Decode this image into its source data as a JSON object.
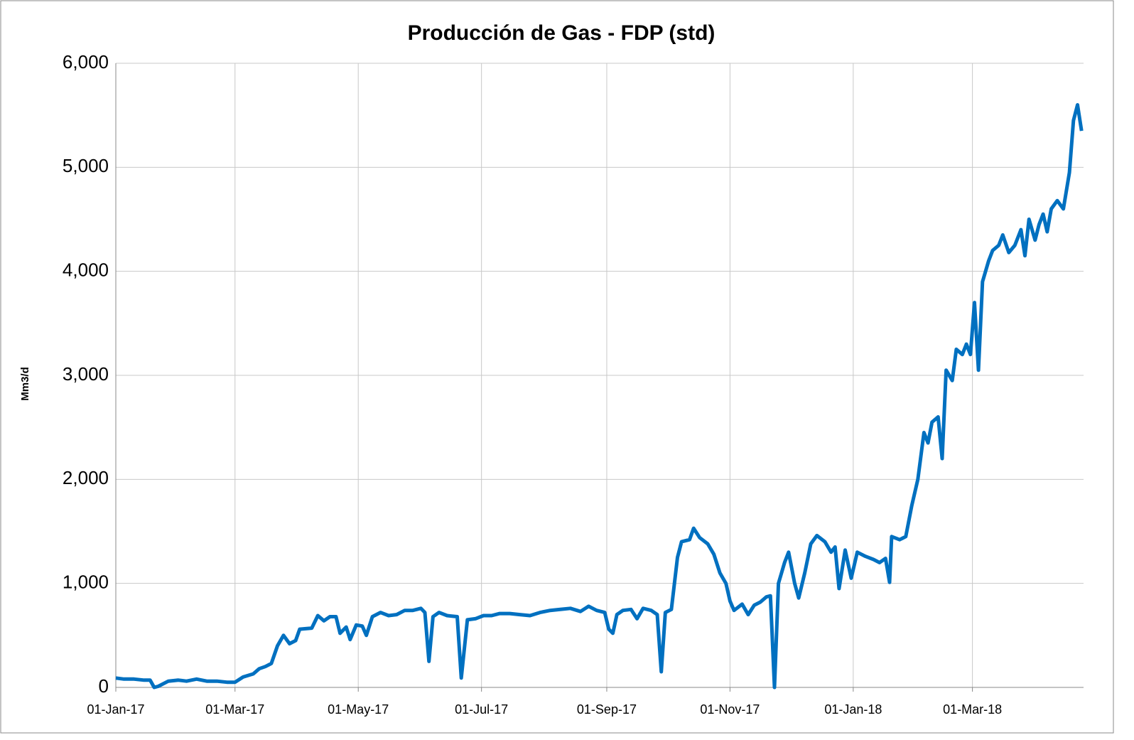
{
  "chart_data": {
    "type": "line",
    "title": "Producción de Gas - FDP (std)",
    "y_label": "Mm3/d",
    "x": [
      "2017-01-01",
      "2017-01-05",
      "2017-01-10",
      "2017-01-15",
      "2017-01-18",
      "2017-01-20",
      "2017-01-22",
      "2017-01-27",
      "2017-02-01",
      "2017-02-05",
      "2017-02-10",
      "2017-02-15",
      "2017-02-20",
      "2017-02-25",
      "2017-03-01",
      "2017-03-05",
      "2017-03-10",
      "2017-03-13",
      "2017-03-16",
      "2017-03-19",
      "2017-03-22",
      "2017-03-25",
      "2017-03-28",
      "2017-03-31",
      "2017-04-02",
      "2017-04-08",
      "2017-04-11",
      "2017-04-14",
      "2017-04-17",
      "2017-04-20",
      "2017-04-22",
      "2017-04-25",
      "2017-04-27",
      "2017-04-30",
      "2017-05-03",
      "2017-05-05",
      "2017-05-08",
      "2017-05-12",
      "2017-05-16",
      "2017-05-20",
      "2017-05-24",
      "2017-05-28",
      "2017-06-01",
      "2017-06-03",
      "2017-06-05",
      "2017-06-07",
      "2017-06-10",
      "2017-06-14",
      "2017-06-19",
      "2017-06-21",
      "2017-06-24",
      "2017-06-28",
      "2017-07-02",
      "2017-07-06",
      "2017-07-10",
      "2017-07-15",
      "2017-07-20",
      "2017-07-25",
      "2017-07-30",
      "2017-08-04",
      "2017-08-09",
      "2017-08-14",
      "2017-08-19",
      "2017-08-23",
      "2017-08-27",
      "2017-08-31",
      "2017-09-02",
      "2017-09-04",
      "2017-09-06",
      "2017-09-09",
      "2017-09-13",
      "2017-09-16",
      "2017-09-19",
      "2017-09-23",
      "2017-09-26",
      "2017-09-28",
      "2017-09-30",
      "2017-10-03",
      "2017-10-06",
      "2017-10-08",
      "2017-10-12",
      "2017-10-14",
      "2017-10-17",
      "2017-10-21",
      "2017-10-24",
      "2017-10-27",
      "2017-10-30",
      "2017-11-01",
      "2017-11-03",
      "2017-11-07",
      "2017-11-10",
      "2017-11-13",
      "2017-11-16",
      "2017-11-19",
      "2017-11-21",
      "2017-11-23",
      "2017-11-25",
      "2017-11-28",
      "2017-11-30",
      "2017-12-03",
      "2017-12-05",
      "2017-12-08",
      "2017-12-11",
      "2017-12-14",
      "2017-12-18",
      "2017-12-21",
      "2017-12-23",
      "2017-12-25",
      "2017-12-28",
      "2017-12-31",
      "2018-01-03",
      "2018-01-07",
      "2018-01-11",
      "2018-01-14",
      "2018-01-17",
      "2018-01-19",
      "2018-01-20",
      "2018-01-24",
      "2018-01-27",
      "2018-01-30",
      "2018-02-02",
      "2018-02-05",
      "2018-02-07",
      "2018-02-09",
      "2018-02-12",
      "2018-02-14",
      "2018-02-16",
      "2018-02-19",
      "2018-02-21",
      "2018-02-24",
      "2018-02-26",
      "2018-02-28",
      "2018-03-02",
      "2018-03-04",
      "2018-03-06",
      "2018-03-09",
      "2018-03-11",
      "2018-03-14",
      "2018-03-16",
      "2018-03-19",
      "2018-03-22",
      "2018-03-25",
      "2018-03-27",
      "2018-03-29",
      "2018-04-01",
      "2018-04-03",
      "2018-04-05",
      "2018-04-07",
      "2018-04-09",
      "2018-04-12",
      "2018-04-15",
      "2018-04-18",
      "2018-04-20",
      "2018-04-22",
      "2018-04-24"
    ],
    "series": [
      {
        "name": "Producción de Gas",
        "color": "#0070c0",
        "values": [
          90,
          80,
          80,
          70,
          70,
          0,
          10,
          60,
          70,
          60,
          80,
          60,
          60,
          50,
          50,
          100,
          130,
          180,
          200,
          230,
          400,
          500,
          420,
          450,
          560,
          570,
          690,
          640,
          680,
          680,
          520,
          580,
          460,
          600,
          590,
          500,
          680,
          720,
          690,
          700,
          740,
          740,
          760,
          720,
          250,
          680,
          720,
          690,
          680,
          90,
          650,
          660,
          690,
          690,
          710,
          710,
          700,
          690,
          720,
          740,
          750,
          760,
          730,
          780,
          740,
          720,
          560,
          520,
          700,
          740,
          750,
          660,
          760,
          740,
          700,
          150,
          720,
          750,
          1250,
          1400,
          1420,
          1530,
          1440,
          1380,
          1280,
          1100,
          1000,
          830,
          740,
          800,
          700,
          790,
          820,
          870,
          880,
          0,
          1000,
          1200,
          1300,
          1000,
          860,
          1100,
          1380,
          1460,
          1400,
          1300,
          1350,
          950,
          1320,
          1050,
          1300,
          1260,
          1230,
          1200,
          1240,
          1010,
          1450,
          1420,
          1450,
          1750,
          2000,
          2450,
          2350,
          2550,
          2600,
          2200,
          3050,
          2950,
          3250,
          3200,
          3300,
          3200,
          3700,
          3050,
          3900,
          4100,
          4200,
          4250,
          4350,
          4180,
          4250,
          4400,
          4150,
          4500,
          4300,
          4450,
          4550,
          4380,
          4600,
          4680,
          4600,
          4950,
          5450,
          5600,
          5350
        ]
      }
    ],
    "xlim": [
      "2017-01-01",
      "2018-04-25"
    ],
    "xticks": [
      {
        "value": "2017-01-01",
        "label": "01-Jan-17"
      },
      {
        "value": "2017-03-01",
        "label": "01-Mar-17"
      },
      {
        "value": "2017-05-01",
        "label": "01-May-17"
      },
      {
        "value": "2017-07-01",
        "label": "01-Jul-17"
      },
      {
        "value": "2017-09-01",
        "label": "01-Sep-17"
      },
      {
        "value": "2017-11-01",
        "label": "01-Nov-17"
      },
      {
        "value": "2018-01-01",
        "label": "01-Jan-18"
      },
      {
        "value": "2018-03-01",
        "label": "01-Mar-18"
      }
    ],
    "ylim": [
      0,
      6000
    ],
    "yticks": [
      0,
      {
        "value": 1000,
        "label": "1,000"
      },
      {
        "value": 2000,
        "label": "2,000"
      },
      {
        "value": 3000,
        "label": "3,000"
      },
      {
        "value": 4000,
        "label": "4,000"
      },
      {
        "value": 5000,
        "label": "5,000"
      },
      {
        "value": 6000,
        "label": "6,000"
      }
    ],
    "grid": true
  }
}
